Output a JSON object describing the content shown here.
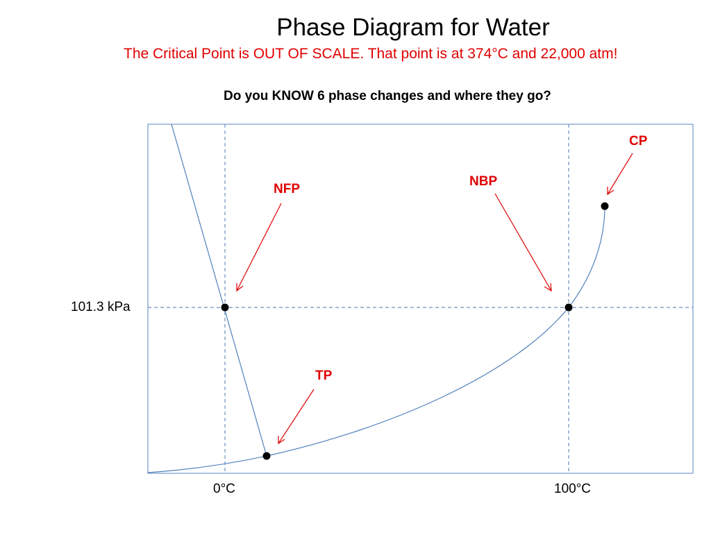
{
  "title": "Phase Diagram for Water",
  "subtitle": "The Critical Point is OUT OF SCALE.  That point is at 374°C and 22,000 atm!",
  "question": "Do you KNOW 6 phase changes and where they go?",
  "y_reference_label": "101.3 kPa",
  "x_reference_labels": [
    "0°C",
    "100°C"
  ],
  "points": [
    {
      "label": "NFP"
    },
    {
      "label": "NBP"
    },
    {
      "label": "CP"
    },
    {
      "label": "TP"
    }
  ],
  "colors": {
    "curve": "#4f81bd",
    "frame": "#7f9fcf",
    "annotation": "#e00000",
    "point": "#000000"
  }
}
